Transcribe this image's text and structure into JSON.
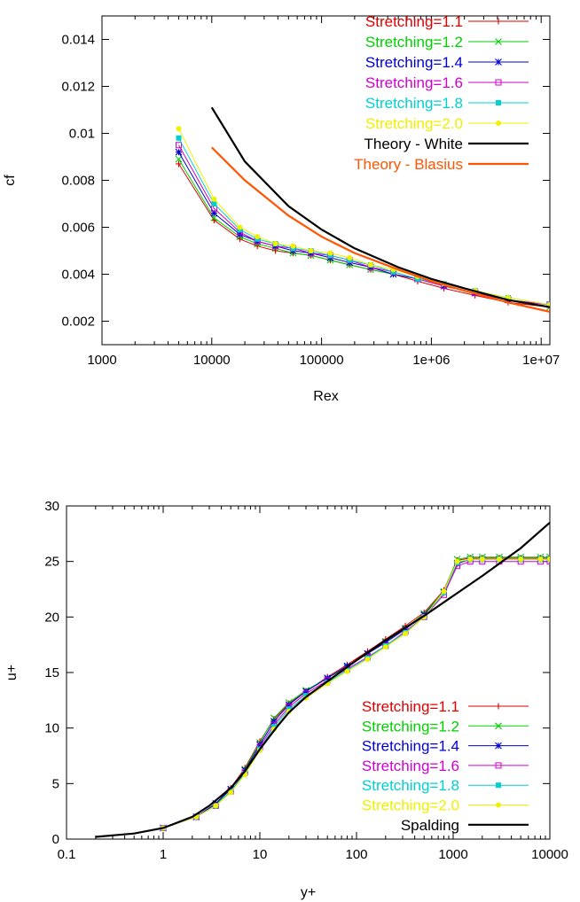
{
  "chart_data": [
    {
      "type": "line",
      "xlabel": "Rex",
      "ylabel": "cf",
      "xscale": "log",
      "xlim": [
        1000,
        12000000
      ],
      "ylim": [
        0.001,
        0.015
      ],
      "xticks": [
        {
          "value": 1000,
          "label": "1000"
        },
        {
          "value": 10000,
          "label": "10000"
        },
        {
          "value": 100000,
          "label": "100000"
        },
        {
          "value": 1000000,
          "label": "1e+06"
        },
        {
          "value": 10000000,
          "label": "1e+07"
        }
      ],
      "yticks": [
        {
          "value": 0.002,
          "label": "0.002"
        },
        {
          "value": 0.004,
          "label": "0.004"
        },
        {
          "value": 0.006,
          "label": "0.006"
        },
        {
          "value": 0.008,
          "label": "0.008"
        },
        {
          "value": 0.01,
          "label": "0.01"
        },
        {
          "value": 0.012,
          "label": "0.012"
        },
        {
          "value": 0.014,
          "label": "0.014"
        }
      ],
      "legend_position": "top-right",
      "grid": false,
      "series": [
        {
          "name": "Stretching=1.1",
          "color": "#e00000",
          "marker": "plus",
          "x": [
            5000,
            10500,
            18000,
            26000,
            38000,
            55000,
            80000,
            120000,
            180000,
            280000,
            450000,
            750000,
            1300000,
            2500000,
            5000000,
            12000000
          ],
          "y": [
            0.0087,
            0.0063,
            0.0055,
            0.0052,
            0.005,
            0.0049,
            0.0048,
            0.0046,
            0.0044,
            0.0042,
            0.004,
            0.0037,
            0.0034,
            0.0031,
            0.0028,
            0.0026
          ]
        },
        {
          "name": "Stretching=1.2",
          "color": "#00d000",
          "marker": "cross",
          "x": [
            5000,
            10500,
            18000,
            26000,
            38000,
            55000,
            80000,
            120000,
            180000,
            280000,
            450000,
            750000,
            1300000,
            2500000,
            5000000,
            12000000
          ],
          "y": [
            0.0089,
            0.0064,
            0.0056,
            0.0053,
            0.0051,
            0.0049,
            0.0048,
            0.0046,
            0.0044,
            0.0042,
            0.004,
            0.0038,
            0.0035,
            0.0032,
            0.0029,
            0.0026
          ]
        },
        {
          "name": "Stretching=1.4",
          "color": "#0000d0",
          "marker": "star",
          "x": [
            5000,
            10500,
            18000,
            26000,
            38000,
            55000,
            80000,
            120000,
            180000,
            280000,
            450000,
            750000,
            1300000,
            2500000,
            5000000,
            12000000
          ],
          "y": [
            0.0092,
            0.0066,
            0.0057,
            0.0054,
            0.0052,
            0.005,
            0.0049,
            0.0047,
            0.0045,
            0.0043,
            0.004,
            0.0038,
            0.0035,
            0.0032,
            0.0029,
            0.0027
          ]
        },
        {
          "name": "Stretching=1.6",
          "color": "#d000d0",
          "marker": "square",
          "x": [
            5000,
            10500,
            18000,
            26000,
            38000,
            55000,
            80000,
            120000,
            180000,
            280000,
            450000,
            750000,
            1300000,
            2500000,
            5000000,
            12000000
          ],
          "y": [
            0.0095,
            0.0068,
            0.0058,
            0.0054,
            0.0052,
            0.0051,
            0.0049,
            0.0048,
            0.0046,
            0.0043,
            0.0041,
            0.0038,
            0.0035,
            0.0032,
            0.0029,
            0.0027
          ]
        },
        {
          "name": "Stretching=1.8",
          "color": "#00d0d0",
          "marker": "filled-square",
          "x": [
            5000,
            10500,
            18000,
            26000,
            38000,
            55000,
            80000,
            120000,
            180000,
            280000,
            450000,
            750000,
            1300000,
            2500000,
            5000000,
            12000000
          ],
          "y": [
            0.0098,
            0.007,
            0.0059,
            0.0055,
            0.0053,
            0.0051,
            0.005,
            0.0048,
            0.0046,
            0.0044,
            0.0041,
            0.0038,
            0.0036,
            0.0033,
            0.003,
            0.0027
          ]
        },
        {
          "name": "Stretching=2.0",
          "color": "#f0f000",
          "marker": "circle",
          "x": [
            5000,
            10500,
            18000,
            26000,
            38000,
            55000,
            80000,
            120000,
            180000,
            280000,
            450000,
            750000,
            1300000,
            2500000,
            5000000,
            12000000
          ],
          "y": [
            0.0102,
            0.0072,
            0.006,
            0.0056,
            0.0053,
            0.0052,
            0.005,
            0.0049,
            0.0047,
            0.0044,
            0.0042,
            0.0039,
            0.0036,
            0.0033,
            0.003,
            0.0027
          ]
        },
        {
          "name": "Theory - White",
          "color": "#000000",
          "marker": "none",
          "x": [
            10000,
            20000,
            50000,
            100000,
            200000,
            500000,
            1000000,
            2000000,
            5000000,
            12000000
          ],
          "y": [
            0.0111,
            0.0088,
            0.0069,
            0.0059,
            0.0051,
            0.0043,
            0.0038,
            0.0034,
            0.0029,
            0.0026
          ]
        },
        {
          "name": "Theory - Blasius",
          "color": "#ff5500",
          "marker": "none",
          "x": [
            10000,
            20000,
            50000,
            100000,
            200000,
            500000,
            1000000,
            2000000,
            5000000,
            12000000
          ],
          "y": [
            0.0094,
            0.008,
            0.0065,
            0.0056,
            0.0049,
            0.0042,
            0.0037,
            0.0033,
            0.0028,
            0.0024
          ]
        }
      ]
    },
    {
      "type": "line",
      "xlabel": "y+",
      "ylabel": "u+",
      "xscale": "log",
      "xlim": [
        0.1,
        10000
      ],
      "ylim": [
        0,
        30
      ],
      "xticks": [
        {
          "value": 0.1,
          "label": "0.1"
        },
        {
          "value": 1,
          "label": "1"
        },
        {
          "value": 10,
          "label": "10"
        },
        {
          "value": 100,
          "label": "100"
        },
        {
          "value": 1000,
          "label": "1000"
        },
        {
          "value": 10000,
          "label": "10000"
        }
      ],
      "yticks": [
        {
          "value": 0,
          "label": "0"
        },
        {
          "value": 5,
          "label": "5"
        },
        {
          "value": 10,
          "label": "10"
        },
        {
          "value": 15,
          "label": "15"
        },
        {
          "value": 20,
          "label": "20"
        },
        {
          "value": 25,
          "label": "25"
        },
        {
          "value": 30,
          "label": "30"
        }
      ],
      "legend_position": "bottom-right",
      "grid": false,
      "series": [
        {
          "name": "Stretching=1.1",
          "color": "#e00000",
          "marker": "plus",
          "x": [
            1,
            2.2,
            3.5,
            5,
            7,
            10,
            14,
            20,
            30,
            50,
            80,
            130,
            200,
            320,
            500,
            800,
            1100,
            1500,
            2000,
            3000,
            5000,
            8000,
            10000
          ],
          "y": [
            1,
            2,
            3.2,
            4.6,
            6.4,
            8.8,
            10.8,
            12.2,
            13.3,
            14.6,
            15.7,
            16.9,
            18,
            19.2,
            20.4,
            22.4,
            25.1,
            25.3,
            25.3,
            25.3,
            25.3,
            25.3,
            25.3
          ]
        },
        {
          "name": "Stretching=1.2",
          "color": "#00d000",
          "marker": "cross",
          "x": [
            1,
            2.2,
            3.5,
            5,
            7,
            10,
            14,
            20,
            30,
            50,
            80,
            130,
            200,
            320,
            500,
            800,
            1100,
            1500,
            2000,
            3000,
            5000,
            8000,
            10000
          ],
          "y": [
            1,
            2,
            3.1,
            4.5,
            6.3,
            8.7,
            10.9,
            12.3,
            13.4,
            14.5,
            15.5,
            16.7,
            17.8,
            19,
            20.3,
            22.3,
            25.2,
            25.4,
            25.4,
            25.4,
            25.4,
            25.4,
            25.4
          ]
        },
        {
          "name": "Stretching=1.4",
          "color": "#0000d0",
          "marker": "star",
          "x": [
            1,
            2.2,
            3.5,
            5,
            7,
            10,
            14,
            20,
            30,
            50,
            80,
            130,
            200,
            320,
            500,
            800,
            1100,
            1500,
            2000,
            3000,
            5000,
            8000,
            10000
          ],
          "y": [
            1,
            2,
            3.2,
            4.5,
            6.2,
            8.5,
            10.6,
            12.1,
            13.3,
            14.5,
            15.6,
            16.7,
            17.7,
            18.9,
            20.2,
            22.2,
            24.8,
            25.2,
            25.2,
            25.2,
            25.2,
            25.2,
            25.2
          ]
        },
        {
          "name": "Stretching=1.6",
          "color": "#d000d0",
          "marker": "square",
          "x": [
            1,
            2.2,
            3.5,
            5,
            7,
            10,
            14,
            20,
            30,
            50,
            80,
            130,
            200,
            320,
            500,
            800,
            1100,
            1500,
            2000,
            3000,
            5000,
            8000,
            10000
          ],
          "y": [
            1,
            2,
            3,
            4.3,
            6,
            8.3,
            10.3,
            11.9,
            13.1,
            14.3,
            15.3,
            16.4,
            17.4,
            18.7,
            20,
            22,
            24.6,
            25,
            25,
            25,
            25,
            25,
            25
          ]
        },
        {
          "name": "Stretching=1.8",
          "color": "#00d0d0",
          "marker": "filled-square",
          "x": [
            1,
            2.2,
            3.5,
            5,
            7,
            10,
            14,
            20,
            30,
            50,
            80,
            130,
            200,
            320,
            500,
            800,
            1100,
            1500,
            2000,
            3000,
            5000,
            8000,
            10000
          ],
          "y": [
            1,
            2,
            3,
            4.3,
            5.9,
            8.1,
            10.1,
            11.7,
            12.9,
            14.1,
            15.2,
            16.3,
            17.4,
            18.6,
            20,
            22.2,
            24.9,
            25.2,
            25.2,
            25.2,
            25.2,
            25.2,
            25.2
          ]
        },
        {
          "name": "Stretching=2.0",
          "color": "#f0f000",
          "marker": "circle",
          "x": [
            1,
            2.2,
            3.5,
            5,
            7,
            10,
            14,
            20,
            30,
            50,
            80,
            130,
            200,
            320,
            500,
            800,
            1100,
            1500,
            2000,
            3000,
            5000,
            8000,
            10000
          ],
          "y": [
            1,
            2,
            3,
            4.2,
            5.8,
            8,
            9.9,
            11.5,
            12.7,
            14,
            15.1,
            16.2,
            17.3,
            18.5,
            20,
            22.3,
            25,
            25.2,
            25.2,
            25.2,
            25.2,
            25.2,
            25.2
          ]
        },
        {
          "name": "Spalding",
          "color": "#000000",
          "marker": "none",
          "x": [
            0.2,
            0.5,
            1,
            2,
            3,
            5,
            7,
            10,
            15,
            20,
            30,
            50,
            100,
            200,
            500,
            1000,
            2000,
            5000,
            10000
          ],
          "y": [
            0.2,
            0.5,
            1,
            2,
            3,
            4.6,
            6.1,
            8.1,
            10.1,
            11.4,
            12.8,
            14.2,
            16.1,
            17.9,
            20.1,
            21.9,
            23.7,
            26.2,
            28.5
          ]
        }
      ]
    }
  ]
}
